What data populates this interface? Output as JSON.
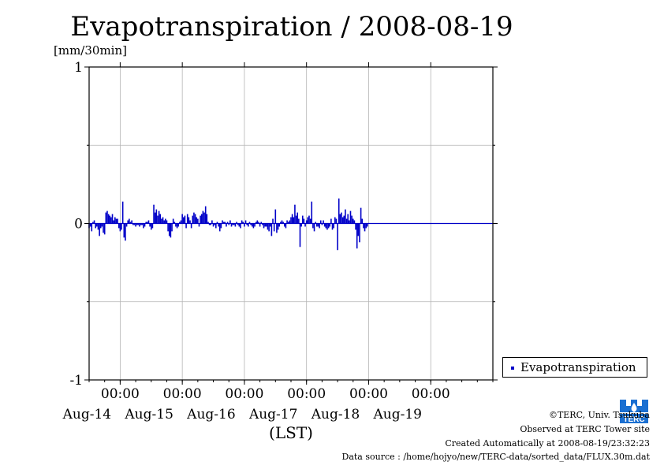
{
  "chart_data": {
    "type": "bar",
    "title": "Evapotranspiration / 2008-08-19",
    "ylabel": "[mm/30min]",
    "xlabel": "(LST)",
    "ylim": [
      -1,
      1
    ],
    "yticks": [
      -1,
      0,
      1
    ],
    "y_tick_labels": [
      "-1",
      "0",
      "1"
    ],
    "grid": true,
    "legend_position": "bottom-right",
    "time_start": "2008-08-13 12:00",
    "time_end": "2008-08-20 00:00",
    "interval_minutes": 30,
    "midnight_tick_label": "00:00",
    "day_labels": [
      "Aug-14",
      "Aug-15",
      "Aug-16",
      "Aug-17",
      "Aug-18",
      "Aug-19"
    ],
    "series": [
      {
        "name": "Evapotranspiration",
        "color": "#0000c8",
        "values": [
          -0.03,
          -0.02,
          -0.05,
          0.01,
          0.02,
          -0.03,
          -0.02,
          -0.04,
          -0.08,
          -0.03,
          -0.02,
          -0.06,
          -0.07,
          0.07,
          0.08,
          0.06,
          0.05,
          0.04,
          0.06,
          0.02,
          0.04,
          0.03,
          0.03,
          -0.03,
          -0.05,
          -0.04,
          0.14,
          -0.09,
          -0.11,
          -0.02,
          0.02,
          0.03,
          0.01,
          0.02,
          -0.01,
          -0.01,
          -0.02,
          -0.01,
          -0.01,
          -0.02,
          -0.01,
          -0.01,
          -0.03,
          -0.02,
          0.01,
          0.01,
          0.02,
          -0.02,
          -0.04,
          -0.03,
          0.12,
          0.07,
          0.09,
          0.05,
          0.08,
          0.06,
          0.03,
          0.04,
          0.02,
          0.03,
          0.02,
          -0.05,
          -0.08,
          -0.09,
          -0.05,
          0.03,
          0.01,
          -0.02,
          -0.03,
          -0.02,
          0.01,
          0.02,
          0.06,
          0.04,
          0.05,
          -0.03,
          0.06,
          0.04,
          0.02,
          -0.03,
          0.05,
          0.07,
          0.06,
          0.04,
          0.03,
          -0.02,
          0.05,
          0.06,
          0.08,
          0.07,
          0.11,
          0.06,
          0.01,
          -0.01,
          -0.01,
          0.02,
          -0.02,
          -0.01,
          -0.03,
          0.01,
          -0.02,
          -0.05,
          -0.03,
          0.02,
          0.01,
          0.01,
          -0.02,
          0.01,
          -0.01,
          0.02,
          -0.02,
          -0.01,
          -0.01,
          -0.02,
          0.01,
          -0.01,
          -0.02,
          -0.03,
          0.02,
          0.01,
          -0.02,
          0.02,
          -0.01,
          -0.02,
          0.01,
          -0.01,
          -0.02,
          -0.03,
          -0.02,
          0.01,
          0.02,
          0.01,
          -0.02,
          0.01,
          -0.01,
          -0.03,
          -0.02,
          -0.02,
          -0.04,
          -0.05,
          -0.02,
          -0.08,
          0.03,
          -0.05,
          0.09,
          -0.06,
          -0.04,
          -0.02,
          0.01,
          0.02,
          0.01,
          -0.02,
          -0.03,
          0.02,
          0.01,
          0.02,
          0.04,
          0.06,
          0.04,
          0.12,
          0.05,
          0.07,
          0.03,
          -0.15,
          -0.02,
          0.05,
          0.03,
          -0.02,
          0.02,
          0.04,
          0.05,
          0.03,
          0.14,
          -0.03,
          -0.05,
          0.01,
          -0.02,
          -0.02,
          -0.03,
          0.02,
          -0.01,
          0.02,
          -0.02,
          -0.03,
          -0.04,
          -0.03,
          -0.02,
          0.03,
          -0.04,
          -0.03,
          0.04,
          0.03,
          -0.17,
          0.16,
          0.06,
          0.07,
          0.04,
          0.05,
          0.09,
          0.03,
          0.06,
          0.02,
          0.08,
          0.05,
          0.03,
          0.02,
          -0.04,
          -0.16,
          -0.08,
          -0.12,
          0.1,
          0.03,
          -0.03,
          -0.05,
          -0.03,
          -0.02
        ]
      }
    ]
  },
  "footer": {
    "copyright": "©TERC, Univ. Tsukuba",
    "observed": "Observed at TERC Tower site",
    "created": "Created Automatically at 2008-08-19/23:32:23",
    "source": "Data source : /home/hojyo/new/TERC-data/sorted_data/FLUX.30m.dat"
  },
  "logo": {
    "name": "terc-logo",
    "text": "TERC",
    "color": "#1a6fd1"
  }
}
